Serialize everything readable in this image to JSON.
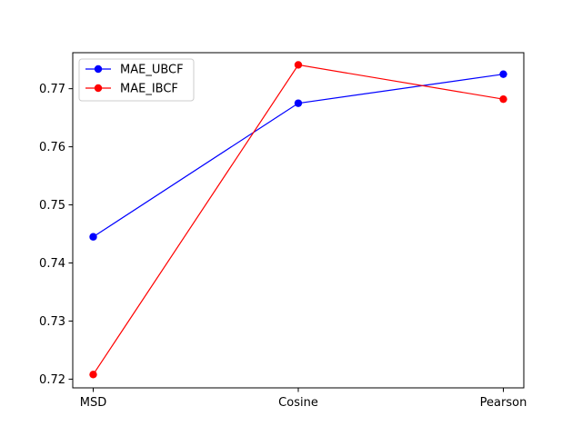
{
  "chart_data": {
    "type": "line",
    "categories": [
      "MSD",
      "Cosine",
      "Pearson"
    ],
    "series": [
      {
        "name": "MAE_UBCF",
        "values": [
          0.7445,
          0.7675,
          0.7725
        ],
        "color": "#0000ff"
      },
      {
        "name": "MAE_IBCF",
        "values": [
          0.7208,
          0.7741,
          0.7682
        ],
        "color": "#ff0000"
      }
    ],
    "ylim": [
      0.7185,
      0.7762
    ],
    "yticks": [
      0.72,
      0.73,
      0.74,
      0.75,
      0.76,
      0.77
    ],
    "ytick_labels": [
      "0.72",
      "0.73",
      "0.74",
      "0.75",
      "0.76",
      "0.77"
    ],
    "legend_position": "top-left",
    "grid": false
  }
}
